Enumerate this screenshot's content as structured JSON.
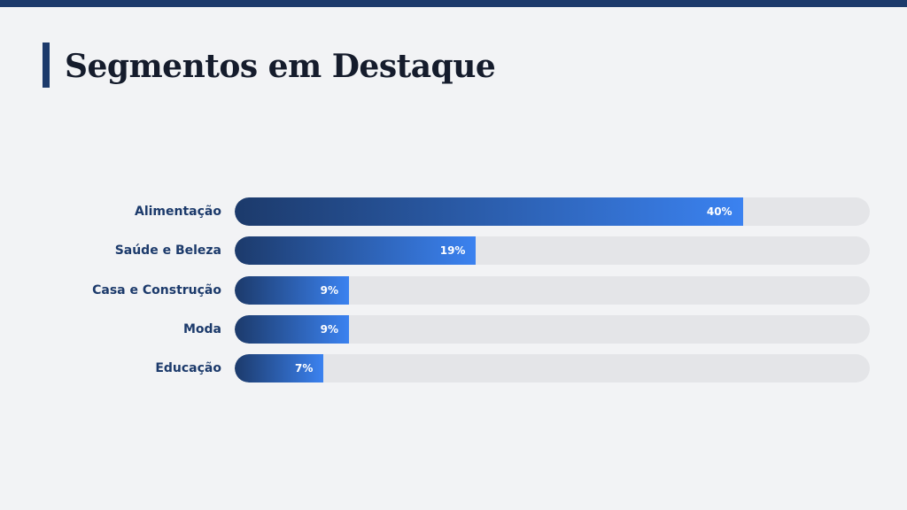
{
  "title": "Segmentos em Destaque",
  "colors": {
    "primary": "#1c3a6b",
    "accent": "#3b82f0",
    "track": "#e4e5e8"
  },
  "chart_data": {
    "type": "bar",
    "orientation": "horizontal",
    "title": "Segmentos em Destaque",
    "categories": [
      "Alimentação",
      "Saúde e Beleza",
      "Casa e Construção",
      "Moda",
      "Educação"
    ],
    "values": [
      40,
      19,
      9,
      9,
      7
    ],
    "value_labels": [
      "40%",
      "19%",
      "9%",
      "9%",
      "7%"
    ],
    "xlim": [
      0,
      50
    ],
    "unit": "%",
    "grid": false
  }
}
